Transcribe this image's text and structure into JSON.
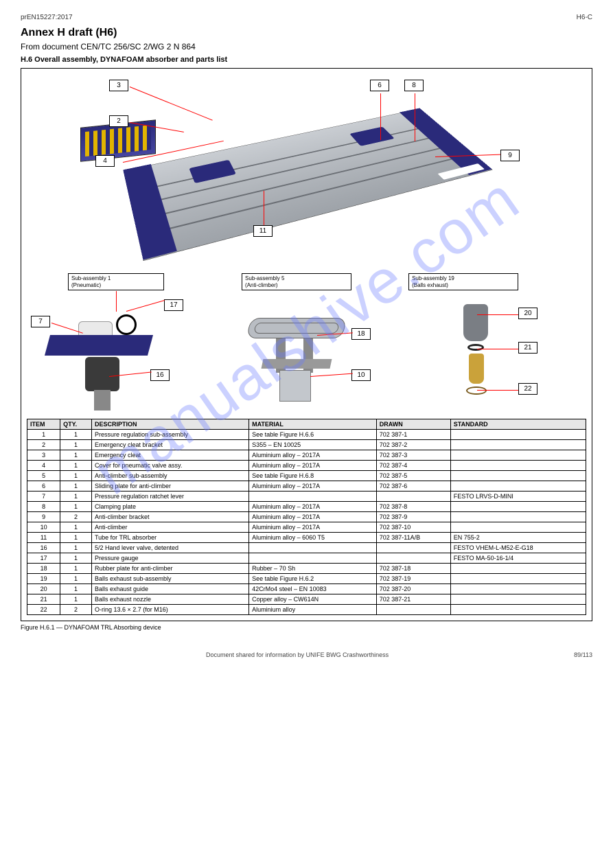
{
  "header": {
    "left": "prEN15227:2017",
    "right": "H6-C"
  },
  "doc": {
    "title": "Annex H draft (H6)",
    "subtitle": "From document CEN/TC 256/SC 2/WG 2 N 864",
    "section": "H.6 Overall assembly, DYNAFOAM absorber and parts list",
    "figure_caption": "Figure H.6.1 — DYNAFOAM TRL Absorbing device"
  },
  "callouts_top": {
    "c2": "2",
    "c3": "3",
    "c4": "4",
    "c6": "6",
    "c8": "8",
    "c9": "9",
    "c11": "11"
  },
  "sub_assemblies": {
    "a": {
      "title": "Sub-assembly 1\n(Pneumatic)",
      "c7": "7",
      "c16": "16",
      "c17": "17"
    },
    "b": {
      "title": "Sub-assembly 5\n(Anti-climber)",
      "c10": "10",
      "c18": "18"
    },
    "c": {
      "title": "Sub-assembly 19\n(Balls exhaust)",
      "c20": "20",
      "c21": "21",
      "c22": "22"
    }
  },
  "table": {
    "columns": [
      "ITEM",
      "QTY.",
      "DESCRIPTION",
      "MATERIAL",
      "DRAWN",
      "STANDARD"
    ],
    "rows": [
      [
        "1",
        "1",
        "Pressure regulation sub-assembly",
        "See table Figure H.6.6",
        "702 387-1",
        ""
      ],
      [
        "2",
        "1",
        "Emergency cleat bracket",
        "S355 – EN 10025",
        "702 387-2",
        ""
      ],
      [
        "3",
        "1",
        "Emergency cleat",
        "Aluminium alloy – 2017A",
        "702 387-3",
        ""
      ],
      [
        "4",
        "1",
        "Cover for pneumatic valve assy.",
        "Aluminium alloy – 2017A",
        "702 387-4",
        ""
      ],
      [
        "5",
        "1",
        "Anti-climber sub-assembly",
        "See table Figure H.6.8",
        "702 387-5",
        ""
      ],
      [
        "6",
        "1",
        "Sliding plate for anti-climber",
        "Aluminium alloy – 2017A",
        "702 387-6",
        ""
      ],
      [
        "7",
        "1",
        "Pressure regulation ratchet lever",
        "",
        "",
        "FESTO LRVS-D-MINI"
      ],
      [
        "8",
        "1",
        "Clamping plate",
        "Aluminium alloy – 2017A",
        "702 387-8",
        ""
      ],
      [
        "9",
        "2",
        "Anti-climber bracket",
        "Aluminium alloy – 2017A",
        "702 387-9",
        ""
      ],
      [
        "10",
        "1",
        "Anti-climber",
        "Aluminium alloy – 2017A",
        "702 387-10",
        ""
      ],
      [
        "11",
        "1",
        "Tube for TRL absorber",
        "Aluminium alloy – 6060 T5",
        "702 387-11A/B",
        "EN 755-2"
      ],
      [
        "16",
        "1",
        "5/2 Hand lever valve, detented",
        "",
        "",
        "FESTO VHEM-L-M52-E-G18"
      ],
      [
        "17",
        "1",
        "Pressure gauge",
        "",
        "",
        "FESTO MA-50-16-1/4"
      ],
      [
        "18",
        "1",
        "Rubber plate for anti-climber",
        "Rubber – 70 Sh",
        "702 387-18",
        ""
      ],
      [
        "19",
        "1",
        "Balls exhaust sub-assembly",
        "See table Figure H.6.2",
        "702 387-19",
        ""
      ],
      [
        "20",
        "1",
        "Balls exhaust guide",
        "42CrMo4 steel – EN 10083",
        "702 387-20",
        ""
      ],
      [
        "21",
        "1",
        "Balls exhaust nozzle",
        "Copper alloy – CW614N",
        "702 387-21",
        ""
      ],
      [
        "22",
        "2",
        "O-ring 13.6 × 2.7 (for M16)",
        "Aluminium alloy",
        "",
        ""
      ]
    ]
  },
  "footer": {
    "left": "Document shared for information by UNIFE BWG Crashworthiness",
    "page": "89/113"
  },
  "watermark": "manualshive.com",
  "colors": {
    "leader": "#ff0000",
    "blue": "#2a2a7a",
    "grey": "#b9bdc3"
  }
}
